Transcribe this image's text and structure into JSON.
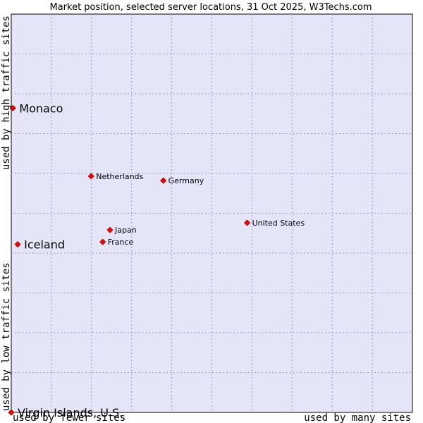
{
  "chart_data": {
    "type": "scatter",
    "title": "Market position, selected server locations, 31 Oct 2025, W3Techs.com",
    "xlabel_left": "used by fewer sites",
    "xlabel_right": "used by many sites",
    "ylabel_low": "used by low traffic sites",
    "ylabel_high": "used by high traffic sites",
    "xlim": [
      0,
      100
    ],
    "ylim": [
      0,
      100
    ],
    "grid": true,
    "colors": {
      "plot_bg": "#e4e6f8",
      "point": "#ff0000",
      "point_edge": "#990000",
      "border": "#000000"
    },
    "points": [
      {
        "name": "Monaco",
        "x": 0.4,
        "y": 76.4,
        "size": "large"
      },
      {
        "name": "Iceland",
        "x": 1.6,
        "y": 42.2,
        "size": "large"
      },
      {
        "name": "Virgin Islands, U.S.",
        "x": 0.0,
        "y": 0.0,
        "size": "large"
      },
      {
        "name": "Netherlands",
        "x": 19.9,
        "y": 59.3,
        "size": "small"
      },
      {
        "name": "Germany",
        "x": 37.9,
        "y": 58.2,
        "size": "small"
      },
      {
        "name": "United States",
        "x": 58.8,
        "y": 47.6,
        "size": "small"
      },
      {
        "name": "Japan",
        "x": 24.6,
        "y": 45.8,
        "size": "small"
      },
      {
        "name": "France",
        "x": 22.8,
        "y": 42.8,
        "size": "small"
      }
    ]
  }
}
